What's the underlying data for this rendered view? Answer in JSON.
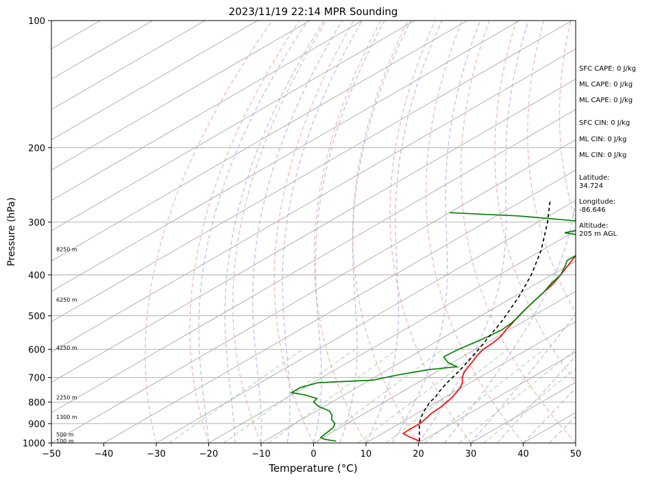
{
  "chart_data": {
    "type": "line",
    "subtype": "skew-t log-p sounding",
    "title": "2023/11/19 22:14 MPR Sounding",
    "xlabel": "Temperature (°C)",
    "ylabel": "Pressure (hPa)",
    "xlim": [
      -50,
      50
    ],
    "ylim": [
      1000,
      100
    ],
    "y_scale": "log",
    "x_ticks": [
      -50,
      -40,
      -30,
      -20,
      -10,
      0,
      10,
      20,
      30,
      40,
      50
    ],
    "y_ticks": [
      100,
      200,
      300,
      400,
      500,
      600,
      700,
      800,
      900,
      1000
    ],
    "grid": true,
    "skew_isotherms_every_c": 10,
    "dry_adiabats_c": [
      -30,
      -20,
      -10,
      0,
      10,
      20,
      30,
      40,
      50,
      60,
      70,
      80,
      90,
      100,
      110,
      120
    ],
    "moist_adiabats_c": [
      -20,
      -15,
      -10,
      -5,
      0,
      5,
      10,
      15,
      20,
      25,
      30,
      35,
      40,
      45
    ],
    "mixing_lines_gkg": [
      0.4,
      1,
      2,
      4,
      7,
      10,
      16,
      24,
      32
    ],
    "height_labels": [
      {
        "text": "100 m",
        "p": 988
      },
      {
        "text": "500 m",
        "p": 955
      },
      {
        "text": "1300 m",
        "p": 868
      },
      {
        "text": "2250 m",
        "p": 780
      },
      {
        "text": "4250 m",
        "p": 595
      },
      {
        "text": "6250 m",
        "p": 458
      },
      {
        "text": "8250 m",
        "p": 348
      }
    ],
    "series": [
      {
        "color": "#ff0000",
        "points": [
          [
            990,
            19.6
          ],
          [
            965,
            16
          ],
          [
            950,
            14
          ],
          [
            925,
            13.8
          ],
          [
            900,
            13.9
          ],
          [
            880,
            13.5
          ],
          [
            850,
            12.7
          ],
          [
            820,
            12.4
          ],
          [
            800,
            11.9
          ],
          [
            780,
            11.4
          ],
          [
            760,
            10.6
          ],
          [
            740,
            9.8
          ],
          [
            720,
            8.5
          ],
          [
            700,
            6.8
          ],
          [
            680,
            5.4
          ],
          [
            660,
            4.4
          ],
          [
            640,
            3.4
          ],
          [
            620,
            2.3
          ],
          [
            600,
            1.5
          ],
          [
            580,
            1.2
          ],
          [
            560,
            0.6
          ],
          [
            540,
            -0.6
          ],
          [
            520,
            -1.6
          ],
          [
            500,
            -2.8
          ],
          [
            480,
            -3.8
          ],
          [
            460,
            -4.8
          ],
          [
            440,
            -5.8
          ],
          [
            420,
            -6.8
          ],
          [
            400,
            -8.3
          ],
          [
            380,
            -10
          ],
          [
            360,
            -11.8
          ],
          [
            340,
            -13.5
          ],
          [
            320,
            -15.2
          ],
          [
            300,
            -17
          ],
          [
            290,
            -17.8
          ],
          [
            280,
            -19.2
          ],
          [
            270,
            -20.6
          ],
          [
            265,
            -21.7
          ]
        ]
      },
      {
        "color": "#008000",
        "points": [
          [
            990,
            3.7
          ],
          [
            980,
            0.8
          ],
          [
            970,
            -0.5
          ],
          [
            950,
            -0.8
          ],
          [
            920,
            -1.3
          ],
          [
            900,
            -2.3
          ],
          [
            880,
            -4.3
          ],
          [
            860,
            -5.6
          ],
          [
            840,
            -7.5
          ],
          [
            820,
            -11
          ],
          [
            800,
            -13.5
          ],
          [
            785,
            -14
          ],
          [
            770,
            -17.4
          ],
          [
            760,
            -20.8
          ],
          [
            740,
            -20.8
          ],
          [
            720,
            -19
          ],
          [
            710,
            -9.4
          ],
          [
            690,
            -6.3
          ],
          [
            670,
            -2.1
          ],
          [
            660,
            2.2
          ],
          [
            645,
            -0.9
          ],
          [
            625,
            -3.6
          ],
          [
            600,
            -3.2
          ],
          [
            580,
            -2.5
          ],
          [
            560,
            -1.8
          ],
          [
            540,
            -1.4
          ],
          [
            520,
            -1.8
          ],
          [
            500,
            -2.7
          ],
          [
            480,
            -3.8
          ],
          [
            460,
            -4.8
          ],
          [
            440,
            -5.8
          ],
          [
            420,
            -7.2
          ],
          [
            400,
            -8.3
          ],
          [
            380,
            -10.5
          ],
          [
            370,
            -11.8
          ],
          [
            360,
            -11.8
          ],
          [
            345,
            -12.3
          ],
          [
            335,
            -13.1
          ],
          [
            325,
            -15
          ],
          [
            318,
            -21.4
          ],
          [
            305,
            -17.1
          ],
          [
            300,
            -20
          ],
          [
            290,
            -36
          ],
          [
            285,
            -50
          ]
        ]
      },
      {
        "color": "#000000",
        "dashed": true,
        "points": [
          [
            990,
            19.6
          ],
          [
            900,
            13.8
          ],
          [
            850,
            11
          ],
          [
            800,
            8.7
          ],
          [
            780,
            8.2
          ],
          [
            760,
            7.2
          ],
          [
            740,
            6.4
          ],
          [
            720,
            5.6
          ],
          [
            700,
            4.9
          ],
          [
            680,
            4.2
          ],
          [
            660,
            3.4
          ],
          [
            640,
            2.5
          ],
          [
            620,
            1.6
          ],
          [
            600,
            0.6
          ],
          [
            560,
            -1.6
          ],
          [
            520,
            -3.9
          ],
          [
            500,
            -5.3
          ],
          [
            450,
            -9.1
          ],
          [
            400,
            -13.9
          ],
          [
            350,
            -20.1
          ],
          [
            300,
            -28.2
          ],
          [
            265,
            -35.2
          ]
        ]
      }
    ],
    "annotations": [
      "SFC CAPE: 0 J/kg",
      "ML CAPE: 0 J/kg",
      "ML CAPE: 0 J/kg",
      "SFC CIN: 0 J/kg",
      "ML CIN: 0 J/kg",
      "ML CIN: 0 J/kg",
      "Latitude:",
      "34.724",
      "Longitude:",
      "-86.646",
      "Altitude:",
      "205 m AGL"
    ]
  }
}
